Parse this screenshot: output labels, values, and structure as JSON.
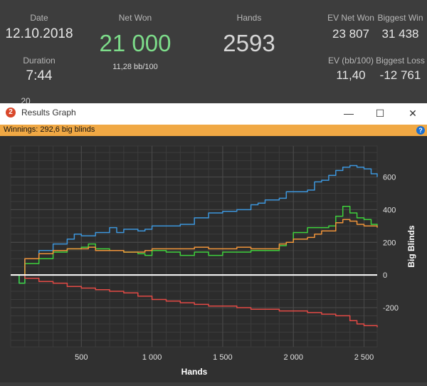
{
  "stats": {
    "date_label": "Date",
    "date_value": "12.10.2018",
    "duration_label": "Duration",
    "duration_value": "7:44",
    "netwon_label": "Net Won",
    "netwon_value": "21 000",
    "netwon_sub": "11,28 bb/100",
    "hands_label": "Hands",
    "hands_value": "2593",
    "evnetwon_label": "EV Net Won",
    "evnetwon_value": "23 807",
    "biggestwin_label": "Biggest Win",
    "biggestwin_value": "31 438",
    "evbb_label": "EV (bb/100)",
    "evbb_value": "11,40",
    "biggestloss_label": "Biggest Loss",
    "biggestloss_value": "-12 761",
    "partial_text": "20"
  },
  "window": {
    "title": "Results Graph",
    "icon_text": "2",
    "minimize_glyph": "—",
    "maximize_glyph": "☐",
    "close_glyph": "✕"
  },
  "infobar": {
    "text": "Winnings: 292,6 big blinds",
    "help_glyph": "?"
  },
  "colors": {
    "blue": "#3d96dc",
    "green": "#3ed13c",
    "orange": "#f0943a",
    "red": "#e34a45",
    "netwon": "#7ddc8a"
  },
  "chart_data": {
    "type": "line",
    "xlabel": "Hands",
    "ylabel": "Big Blinds",
    "xlim": [
      0,
      2593
    ],
    "ylim": [
      -440,
      790
    ],
    "xticks": [
      500,
      1000,
      1500,
      2000,
      2500
    ],
    "xtick_labels": [
      "500",
      "1 000",
      "1 500",
      "2 000",
      "2 500"
    ],
    "yticks": [
      -200,
      0,
      200,
      400,
      600
    ],
    "ytick_labels": [
      "-200",
      "0",
      "200",
      "400",
      "600"
    ],
    "grid": true,
    "series": [
      {
        "color": "#3d96dc",
        "x": [
          0,
          60,
          100,
          200,
          300,
          400,
          450,
          500,
          600,
          700,
          750,
          800,
          900,
          950,
          1000,
          1100,
          1200,
          1300,
          1400,
          1500,
          1600,
          1700,
          1750,
          1800,
          1900,
          1950,
          2000,
          2100,
          2150,
          2200,
          2250,
          2300,
          2350,
          2400,
          2450,
          2500,
          2550,
          2593
        ],
        "y": [
          0,
          -50,
          100,
          150,
          190,
          220,
          250,
          240,
          260,
          290,
          260,
          280,
          270,
          280,
          300,
          300,
          310,
          350,
          380,
          390,
          400,
          430,
          440,
          460,
          470,
          510,
          510,
          520,
          570,
          580,
          610,
          640,
          660,
          670,
          660,
          650,
          620,
          600
        ]
      },
      {
        "color": "#3ed13c",
        "x": [
          0,
          60,
          100,
          200,
          300,
          400,
          500,
          550,
          600,
          700,
          800,
          900,
          950,
          1000,
          1100,
          1200,
          1300,
          1400,
          1500,
          1600,
          1700,
          1800,
          1900,
          1950,
          2000,
          2100,
          2150,
          2200,
          2250,
          2300,
          2350,
          2400,
          2450,
          2500,
          2550,
          2593
        ],
        "y": [
          0,
          -50,
          70,
          100,
          140,
          160,
          170,
          190,
          160,
          150,
          140,
          130,
          120,
          150,
          140,
          120,
          140,
          120,
          140,
          140,
          150,
          150,
          180,
          200,
          260,
          290,
          290,
          290,
          300,
          360,
          420,
          380,
          350,
          340,
          310,
          300
        ]
      },
      {
        "color": "#f0943a",
        "x": [
          0,
          60,
          100,
          200,
          300,
          400,
          500,
          550,
          600,
          700,
          800,
          900,
          950,
          1000,
          1100,
          1200,
          1300,
          1400,
          1500,
          1600,
          1700,
          1800,
          1900,
          1950,
          2000,
          2100,
          2150,
          2200,
          2250,
          2300,
          2350,
          2400,
          2450,
          2500,
          2550,
          2593
        ],
        "y": [
          0,
          0,
          100,
          130,
          150,
          160,
          160,
          170,
          150,
          150,
          140,
          140,
          150,
          160,
          160,
          160,
          170,
          160,
          160,
          170,
          160,
          160,
          190,
          200,
          220,
          230,
          250,
          270,
          270,
          320,
          340,
          330,
          310,
          300,
          300,
          290
        ]
      },
      {
        "color": "#e34a45",
        "x": [
          0,
          100,
          200,
          300,
          400,
          500,
          600,
          700,
          800,
          900,
          1000,
          1100,
          1200,
          1300,
          1400,
          1500,
          1600,
          1700,
          1800,
          1900,
          2000,
          2100,
          2200,
          2300,
          2400,
          2450,
          2500,
          2550,
          2593
        ],
        "y": [
          0,
          -20,
          -40,
          -50,
          -70,
          -80,
          -90,
          -100,
          -110,
          -130,
          -150,
          -160,
          -170,
          -180,
          -190,
          -190,
          -200,
          -210,
          -210,
          -220,
          -220,
          -230,
          -240,
          -250,
          -280,
          -300,
          -310,
          -310,
          -320
        ]
      }
    ],
    "zero_line": 0
  }
}
